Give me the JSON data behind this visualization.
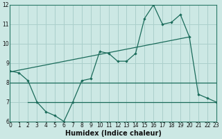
{
  "title": "",
  "xlabel": "Humidex (Indice chaleur)",
  "background_color": "#cce8e4",
  "grid_color": "#aacfcb",
  "line_color": "#1a6b5a",
  "spine_color": "#2a7a68",
  "x_min": 0,
  "x_max": 23,
  "y_min": 6,
  "y_max": 12,
  "line1_x": [
    0,
    1,
    2,
    3,
    4,
    5,
    6,
    7,
    8,
    9,
    10,
    11,
    12,
    13,
    14,
    15,
    16,
    17,
    18,
    19,
    20,
    21,
    22,
    23
  ],
  "line1_y": [
    8.6,
    8.5,
    8.1,
    7.0,
    6.5,
    6.3,
    6.0,
    7.0,
    8.1,
    8.2,
    9.6,
    9.5,
    9.1,
    9.1,
    9.5,
    11.3,
    12.0,
    11.0,
    11.1,
    11.5,
    10.35,
    7.4,
    7.2,
    7.0
  ],
  "trend_x": [
    0,
    20
  ],
  "trend_y": [
    8.55,
    10.35
  ],
  "flat_line_x": [
    0,
    23
  ],
  "flat_line_y": [
    8.0,
    8.0
  ],
  "flat_line2_x": [
    2,
    23
  ],
  "flat_line2_y": [
    7.0,
    7.0
  ],
  "tick_fontsize": 5.5,
  "xlabel_fontsize": 7
}
